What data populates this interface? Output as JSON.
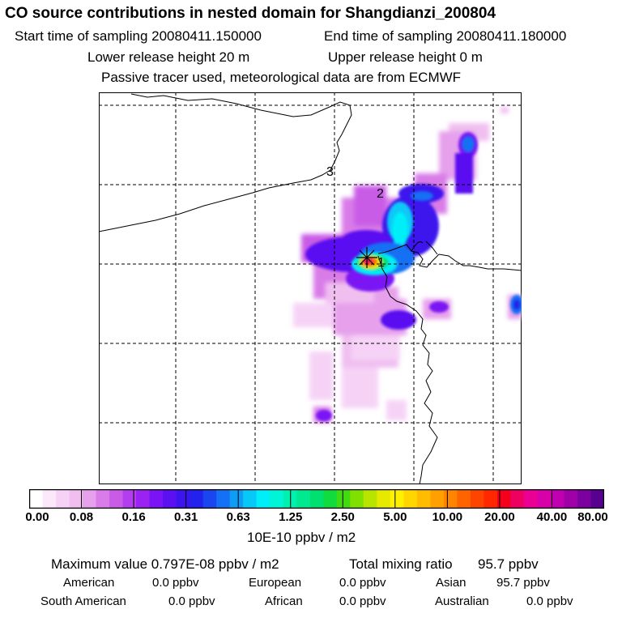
{
  "header": {
    "title": "CO  source contributions in nested domain for Shangdianzi_200804",
    "start_time": "Start time of sampling 20080411.150000",
    "end_time": "End time of sampling 20080411.180000",
    "lower_height": "Lower release height   20 m",
    "upper_height": "Upper release height    0 m",
    "tracer_info": "Passive tracer used, meteorological data are from ECMWF"
  },
  "map": {
    "station_marker_label": "1",
    "trajectory_labels": [
      "1",
      "2",
      "3"
    ]
  },
  "colorbar": {
    "tick_labels": [
      "0.00",
      "0.08",
      "0.16",
      "0.31",
      "0.63",
      "1.25",
      "2.50",
      "5.00",
      "10.00",
      "20.00",
      "40.00",
      "80.00"
    ],
    "units": "10E-10 ppbv / m2",
    "colors": [
      "#ffffff",
      "#fbe8fb",
      "#f6d3f6",
      "#f0bff0",
      "#e6a0ec",
      "#d97be8",
      "#c95be6",
      "#b33ef0",
      "#9a22f2",
      "#7a14f4",
      "#5a10f0",
      "#3c14ee",
      "#2222ec",
      "#1a46f0",
      "#1470f4",
      "#0e9cf6",
      "#08c8f8",
      "#00eef8",
      "#00f4d6",
      "#00f0b0",
      "#00e890",
      "#00e070",
      "#10dc40",
      "#40dc10",
      "#80e000",
      "#b8e400",
      "#e6ea00",
      "#fff000",
      "#ffd600",
      "#ffbc00",
      "#ffa000",
      "#ff8400",
      "#ff6400",
      "#ff4400",
      "#ff2800",
      "#f4001c",
      "#ee0060",
      "#ea0094",
      "#d800a8",
      "#c000b0",
      "#a000a8",
      "#7c00a0",
      "#580090"
    ]
  },
  "stats": {
    "max_label": "Maximum value  0.797E-08 ppbv / m2",
    "total_label": "Total mixing ratio",
    "total_value": "95.7 ppbv",
    "regions": [
      {
        "name": "American",
        "value": "0.0 ppbv"
      },
      {
        "name": "European",
        "value": "0.0 ppbv"
      },
      {
        "name": "Asian",
        "value": "95.7 ppbv"
      },
      {
        "name": "South American",
        "value": "0.0 ppbv"
      },
      {
        "name": "African",
        "value": "0.0 ppbv"
      },
      {
        "name": "Australian",
        "value": "0.0 ppbv"
      }
    ]
  }
}
